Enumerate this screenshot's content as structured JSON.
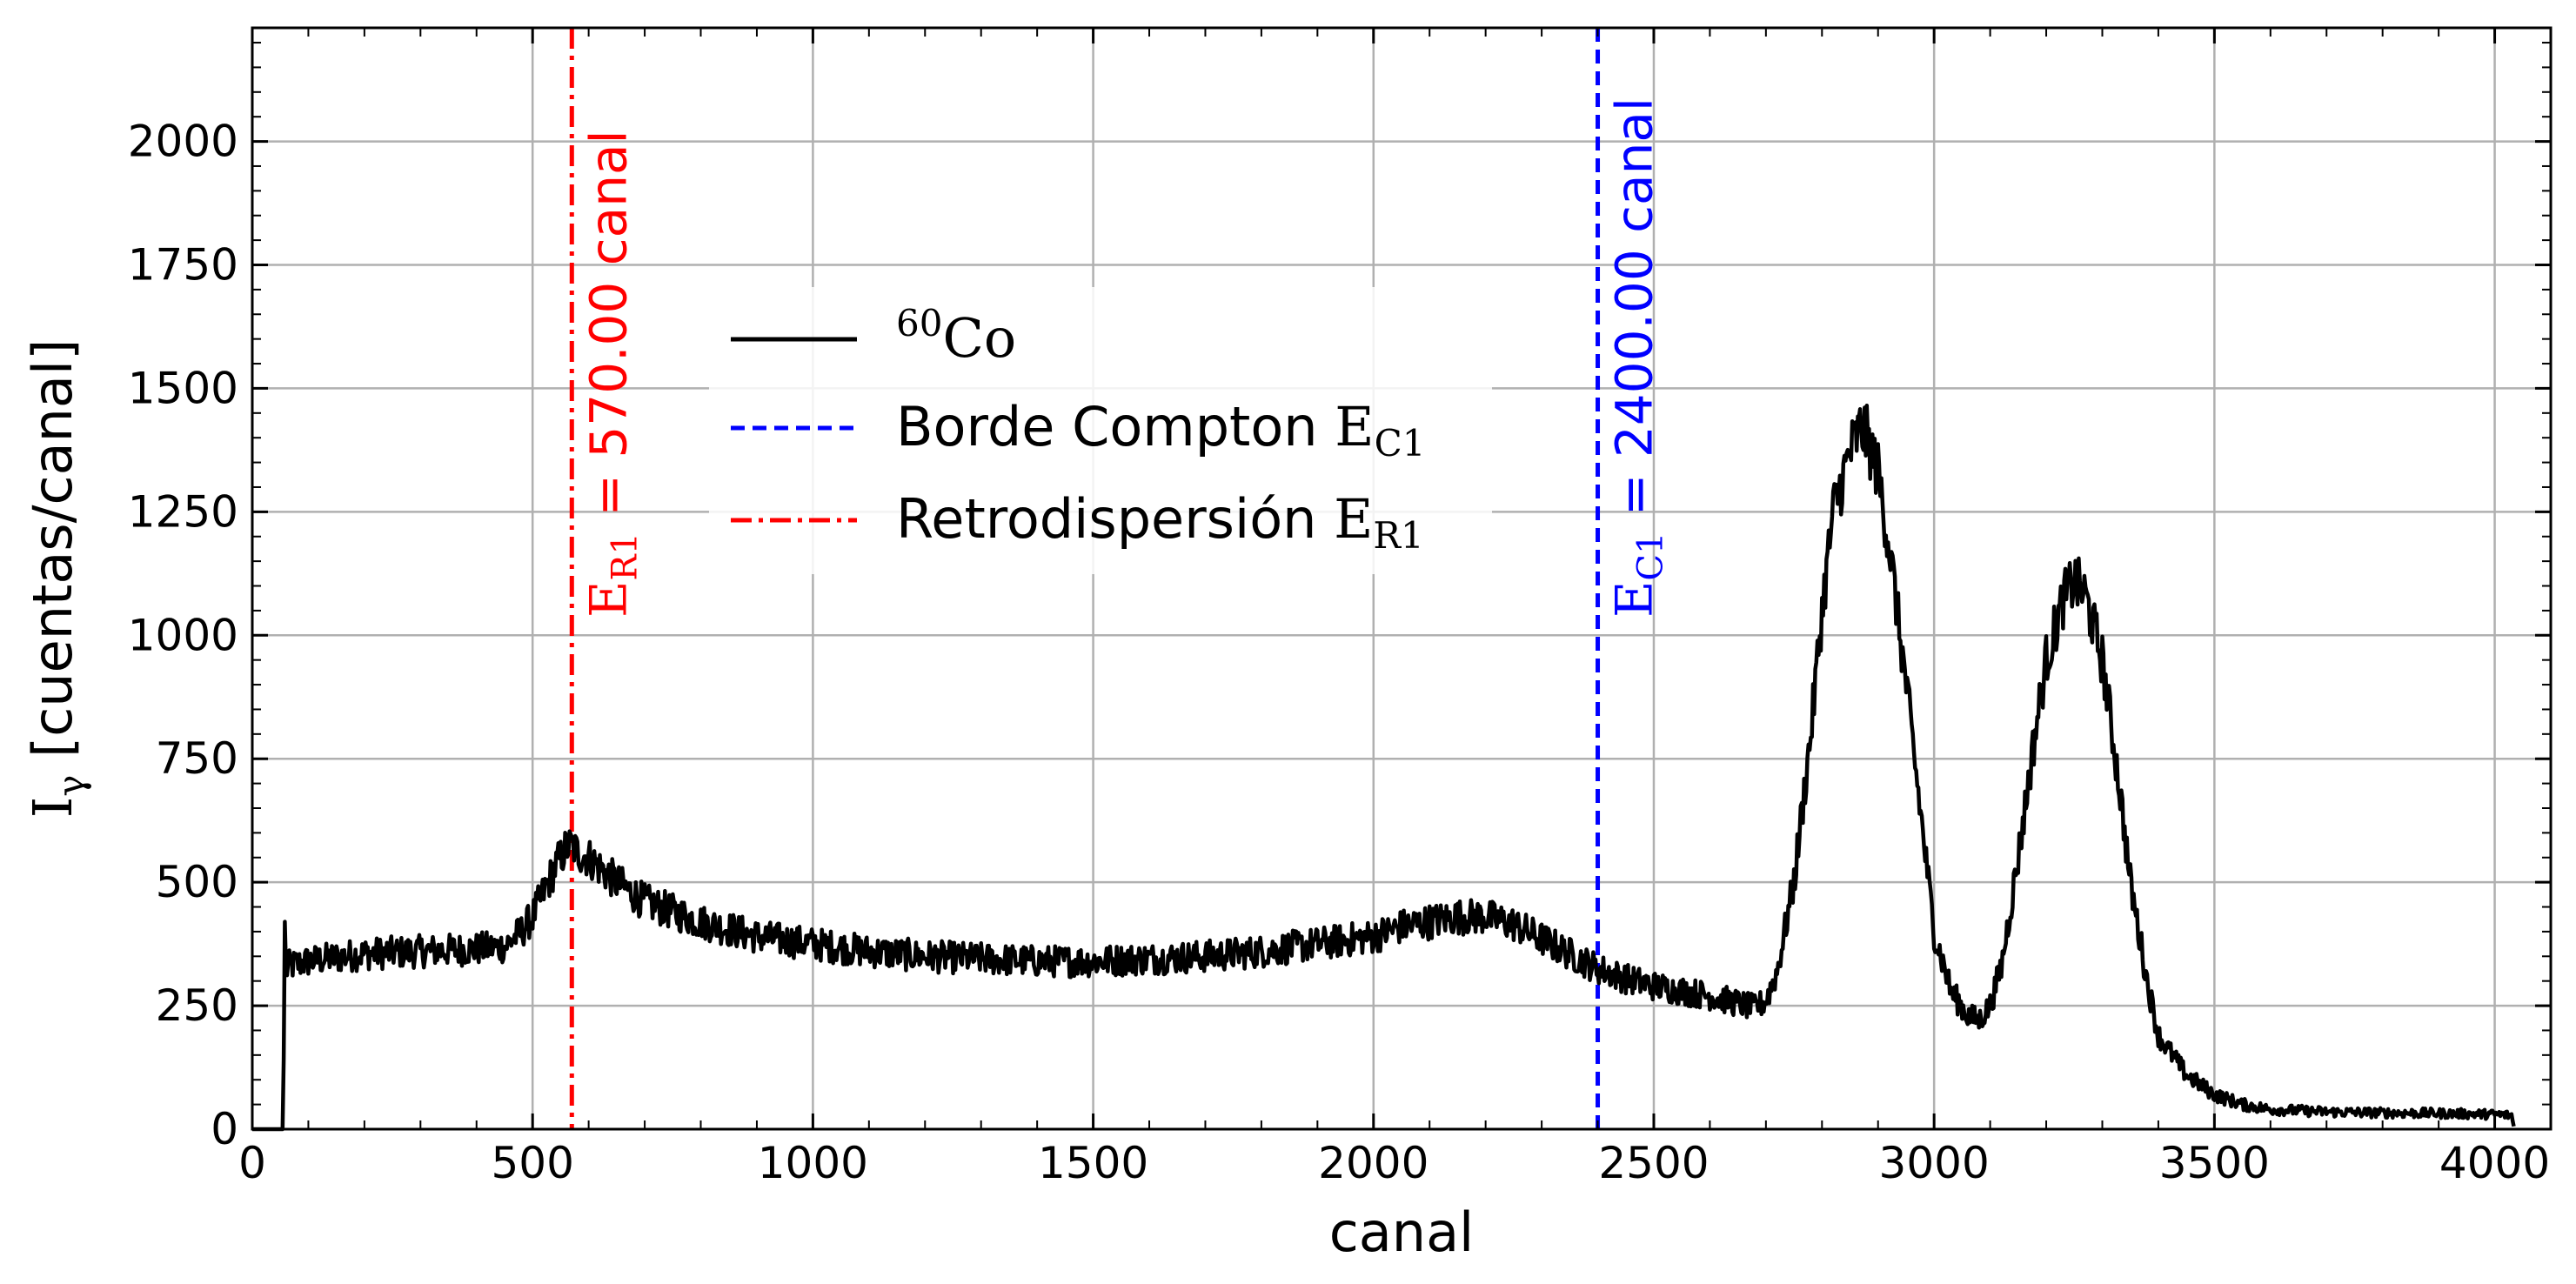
{
  "chart_data": {
    "type": "line",
    "xlabel": "canal",
    "ylabel_main": "I",
    "ylabel_sub": "γ",
    "ylabel_rest": " [cuentas/canal]",
    "xlim": [
      0,
      4100
    ],
    "ylim": [
      0,
      2230
    ],
    "xticks": [
      0,
      500,
      1000,
      1500,
      2000,
      2500,
      3000,
      3500,
      4000
    ],
    "yticks": [
      0,
      250,
      500,
      750,
      1000,
      1250,
      1500,
      1750,
      2000
    ],
    "grid": true,
    "series": [
      {
        "name_sup": "60",
        "name_main": "Co",
        "color": "#000000",
        "x": [
          0,
          55,
          58,
          60,
          65,
          100,
          200,
          300,
          400,
          450,
          480,
          500,
          520,
          540,
          560,
          570,
          580,
          600,
          620,
          650,
          700,
          800,
          900,
          1000,
          1100,
          1200,
          1300,
          1400,
          1500,
          1600,
          1700,
          1800,
          1900,
          2000,
          2050,
          2100,
          2150,
          2200,
          2250,
          2300,
          2350,
          2400,
          2450,
          2500,
          2550,
          2600,
          2650,
          2680,
          2700,
          2720,
          2750,
          2780,
          2800,
          2820,
          2850,
          2870,
          2880,
          2900,
          2920,
          2950,
          2980,
          3000,
          3030,
          3060,
          3080,
          3100,
          3120,
          3150,
          3180,
          3200,
          3230,
          3250,
          3270,
          3300,
          3330,
          3350,
          3380,
          3400,
          3450,
          3500,
          3550,
          3600,
          3700,
          3800,
          3900,
          4000,
          4030,
          4035
        ],
        "y": [
          0,
          0,
          420,
          320,
          330,
          340,
          355,
          360,
          365,
          370,
          400,
          430,
          480,
          530,
          570,
          575,
          560,
          550,
          530,
          500,
          460,
          420,
          390,
          375,
          360,
          350,
          345,
          340,
          340,
          345,
          350,
          360,
          375,
          390,
          410,
          420,
          430,
          430,
          415,
          385,
          355,
          325,
          305,
          290,
          280,
          270,
          255,
          245,
          260,
          320,
          500,
          800,
          1050,
          1250,
          1370,
          1420,
          1400,
          1330,
          1180,
          900,
          600,
          400,
          280,
          230,
          220,
          250,
          330,
          550,
          800,
          950,
          1070,
          1110,
          1080,
          950,
          700,
          500,
          300,
          190,
          110,
          70,
          50,
          40,
          35,
          33,
          32,
          30,
          28,
          0
        ]
      }
    ],
    "vlines": [
      {
        "x": 2400,
        "color": "#0000ff",
        "style": "dashed",
        "legend_text": "Borde Compton ",
        "legend_math": "E",
        "legend_sub": "C1",
        "label_math": "E",
        "label_sub": "C1",
        "label_text": " = 2400.00 canal"
      },
      {
        "x": 570,
        "color": "#ff0000",
        "style": "dashdot",
        "legend_text": "Retrodispersión ",
        "legend_math": "E",
        "legend_sub": "R1",
        "label_math": "E",
        "label_sub": "R1",
        "label_text": " = 570.00 canal"
      }
    ],
    "legend_placement": "upper-left-center"
  }
}
